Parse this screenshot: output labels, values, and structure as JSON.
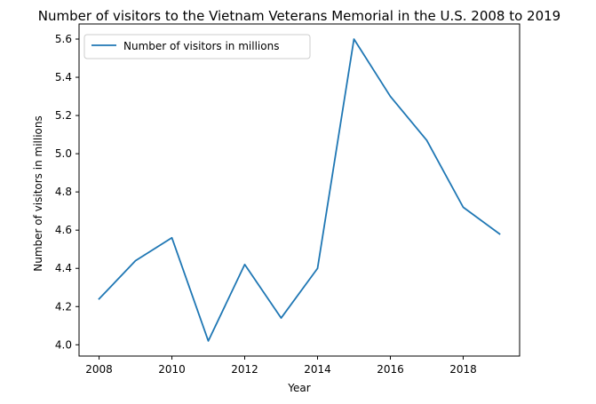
{
  "chart_data": {
    "type": "line",
    "title": "Number of visitors to the Vietnam Veterans Memorial in the U.S. 2008 to 2019",
    "xlabel": "Year",
    "ylabel": "Number of visitors in millions",
    "x": [
      2008,
      2009,
      2010,
      2011,
      2012,
      2013,
      2014,
      2015,
      2016,
      2017,
      2018,
      2019
    ],
    "series": [
      {
        "name": "Number of visitors in millions",
        "values": [
          4.24,
          4.44,
          4.56,
          4.02,
          4.42,
          4.14,
          4.4,
          5.6,
          5.3,
          5.07,
          4.72,
          4.58
        ],
        "color": "#1f77b4"
      }
    ],
    "xlim": [
      2007.45,
      2019.55
    ],
    "ylim": [
      3.941,
      5.679
    ],
    "xticks": [
      2008,
      2010,
      2012,
      2014,
      2016,
      2018
    ],
    "yticks": [
      4.0,
      4.2,
      4.4,
      4.6,
      4.8,
      5.0,
      5.2,
      5.4,
      5.6
    ],
    "xtick_labels": [
      "2008",
      "2010",
      "2012",
      "2014",
      "2016",
      "2018"
    ],
    "ytick_labels": [
      "4.0",
      "4.2",
      "4.4",
      "4.6",
      "4.8",
      "5.0",
      "5.2",
      "5.4",
      "5.6"
    ],
    "grid": false,
    "legend_position": "upper-left"
  }
}
